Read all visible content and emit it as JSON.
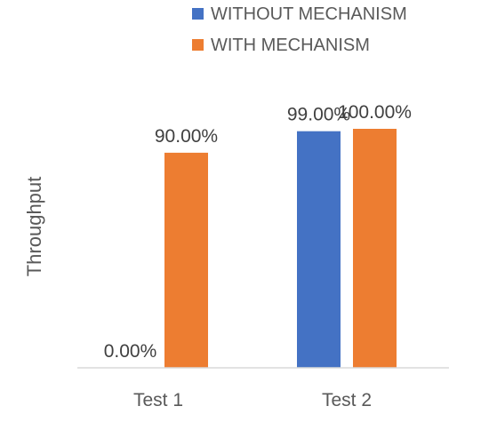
{
  "chart_data": {
    "type": "bar",
    "categories": [
      "Test 1",
      "Test 2"
    ],
    "series": [
      {
        "name": "WITHOUT MECHANISM",
        "values": [
          0,
          99
        ],
        "labels": [
          "0.00%",
          "99.00%"
        ],
        "color": "#4472C4"
      },
      {
        "name": "WITH MECHANISM",
        "values": [
          90,
          100
        ],
        "labels": [
          "90.00%",
          "100.00%"
        ],
        "color": "#ED7D31"
      }
    ],
    "ylabel": "Throughput",
    "xlabel": "",
    "ylim": [
      0,
      100
    ],
    "grid": false,
    "legend_position": "top-right"
  }
}
